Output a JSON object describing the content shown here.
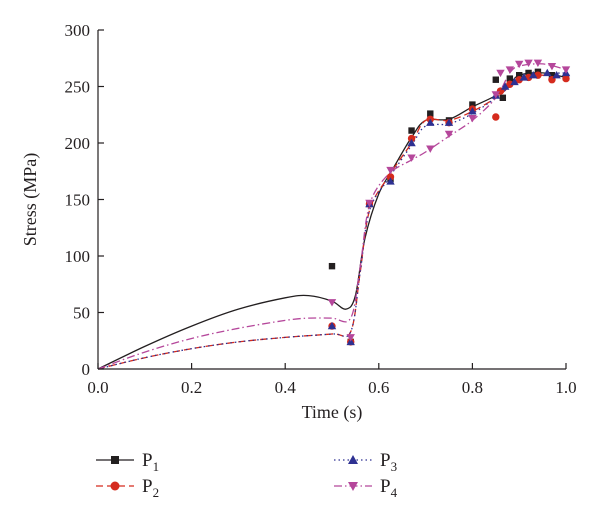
{
  "chart_data": {
    "type": "scatter",
    "title": "",
    "xlabel": "Time (s)",
    "ylabel": "Stress (MPa)",
    "xlim": [
      0.0,
      1.0
    ],
    "ylim": [
      0,
      300
    ],
    "x_ticks": [
      "0.0",
      "0.2",
      "0.4",
      "0.6",
      "0.8",
      "1.0"
    ],
    "y_ticks": [
      "0",
      "50",
      "100",
      "150",
      "200",
      "250",
      "300"
    ],
    "x_tick_values": [
      0.0,
      0.2,
      0.4,
      0.6,
      0.8,
      1.0
    ],
    "y_tick_values": [
      0,
      50,
      100,
      150,
      200,
      250,
      300
    ],
    "grid": false,
    "legend_position": "bottom",
    "series": [
      {
        "name": "P",
        "subscript": "1",
        "marker": "square",
        "line_style": "solid",
        "color": "#231f20",
        "points": [
          [
            0.5,
            91
          ],
          [
            0.54,
            24
          ],
          [
            0.58,
            146
          ],
          [
            0.625,
            168
          ],
          [
            0.67,
            211
          ],
          [
            0.71,
            226
          ],
          [
            0.75,
            220
          ],
          [
            0.8,
            234
          ],
          [
            0.85,
            256
          ],
          [
            0.865,
            240
          ],
          [
            0.88,
            257
          ],
          [
            0.9,
            260
          ],
          [
            0.92,
            262
          ],
          [
            0.94,
            263
          ],
          [
            0.97,
            260
          ],
          [
            1.0,
            258
          ]
        ],
        "curve": [
          [
            0.0,
            0
          ],
          [
            0.1,
            20
          ],
          [
            0.2,
            38
          ],
          [
            0.3,
            53
          ],
          [
            0.4,
            63
          ],
          [
            0.45,
            65
          ],
          [
            0.5,
            60
          ],
          [
            0.53,
            53
          ],
          [
            0.55,
            65
          ],
          [
            0.57,
            115
          ],
          [
            0.6,
            155
          ],
          [
            0.63,
            177
          ],
          [
            0.67,
            205
          ],
          [
            0.7,
            220
          ],
          [
            0.75,
            221
          ],
          [
            0.8,
            232
          ],
          [
            0.85,
            242
          ],
          [
            0.88,
            252
          ],
          [
            0.9,
            260
          ],
          [
            0.95,
            262
          ],
          [
            1.0,
            258
          ]
        ]
      },
      {
        "name": "P",
        "subscript": "2",
        "marker": "circle",
        "line_style": "dashed",
        "color": "#d52b1e",
        "points": [
          [
            0.5,
            38
          ],
          [
            0.54,
            24
          ],
          [
            0.58,
            146
          ],
          [
            0.625,
            170
          ],
          [
            0.67,
            204
          ],
          [
            0.71,
            221
          ],
          [
            0.75,
            218
          ],
          [
            0.8,
            230
          ],
          [
            0.85,
            223
          ],
          [
            0.86,
            246
          ],
          [
            0.88,
            252
          ],
          [
            0.9,
            256
          ],
          [
            0.92,
            258
          ],
          [
            0.94,
            260
          ],
          [
            0.97,
            256
          ],
          [
            1.0,
            257
          ]
        ],
        "curve": [
          [
            0.0,
            0
          ],
          [
            0.1,
            10
          ],
          [
            0.2,
            18
          ],
          [
            0.3,
            24
          ],
          [
            0.4,
            28
          ],
          [
            0.5,
            31
          ],
          [
            0.54,
            33
          ],
          [
            0.56,
            85
          ],
          [
            0.58,
            140
          ],
          [
            0.62,
            170
          ],
          [
            0.67,
            200
          ],
          [
            0.7,
            220
          ],
          [
            0.75,
            220
          ],
          [
            0.8,
            228
          ],
          [
            0.85,
            240
          ],
          [
            0.88,
            250
          ],
          [
            0.9,
            255
          ],
          [
            0.95,
            260
          ],
          [
            1.0,
            257
          ]
        ]
      },
      {
        "name": "P",
        "subscript": "3",
        "marker": "triangle-up",
        "line_style": "dotted",
        "color": "#2e3192",
        "points": [
          [
            0.5,
            38
          ],
          [
            0.54,
            24
          ],
          [
            0.58,
            146
          ],
          [
            0.625,
            166
          ],
          [
            0.67,
            200
          ],
          [
            0.71,
            218
          ],
          [
            0.75,
            218
          ],
          [
            0.8,
            228
          ],
          [
            0.85,
            242
          ],
          [
            0.87,
            250
          ],
          [
            0.89,
            254
          ],
          [
            0.91,
            258
          ],
          [
            0.93,
            260
          ],
          [
            0.96,
            262
          ],
          [
            0.98,
            260
          ],
          [
            1.0,
            262
          ]
        ],
        "curve": [
          [
            0.0,
            0
          ],
          [
            0.1,
            10
          ],
          [
            0.2,
            18
          ],
          [
            0.3,
            24
          ],
          [
            0.4,
            28
          ],
          [
            0.5,
            31
          ],
          [
            0.54,
            33
          ],
          [
            0.56,
            85
          ],
          [
            0.58,
            140
          ],
          [
            0.62,
            168
          ],
          [
            0.67,
            198
          ],
          [
            0.7,
            215
          ],
          [
            0.75,
            217
          ],
          [
            0.8,
            226
          ],
          [
            0.85,
            240
          ],
          [
            0.88,
            250
          ],
          [
            0.9,
            256
          ],
          [
            0.95,
            261
          ],
          [
            1.0,
            262
          ]
        ]
      },
      {
        "name": "P",
        "subscript": "4",
        "marker": "triangle-down",
        "line_style": "dash-dot",
        "color": "#b5479b",
        "points": [
          [
            0.5,
            59
          ],
          [
            0.54,
            28
          ],
          [
            0.58,
            147
          ],
          [
            0.625,
            176
          ],
          [
            0.67,
            187
          ],
          [
            0.71,
            195
          ],
          [
            0.75,
            208
          ],
          [
            0.8,
            222
          ],
          [
            0.85,
            243
          ],
          [
            0.86,
            262
          ],
          [
            0.88,
            265
          ],
          [
            0.9,
            270
          ],
          [
            0.92,
            271
          ],
          [
            0.94,
            271
          ],
          [
            0.97,
            268
          ],
          [
            1.0,
            265
          ]
        ],
        "curve": [
          [
            0.0,
            0
          ],
          [
            0.1,
            15
          ],
          [
            0.2,
            27
          ],
          [
            0.3,
            36
          ],
          [
            0.4,
            43
          ],
          [
            0.45,
            45
          ],
          [
            0.5,
            45
          ],
          [
            0.54,
            45
          ],
          [
            0.56,
            90
          ],
          [
            0.58,
            145
          ],
          [
            0.62,
            172
          ],
          [
            0.67,
            185
          ],
          [
            0.7,
            192
          ],
          [
            0.75,
            206
          ],
          [
            0.8,
            220
          ],
          [
            0.85,
            240
          ],
          [
            0.88,
            262
          ],
          [
            0.9,
            268
          ],
          [
            0.95,
            270
          ],
          [
            1.0,
            265
          ]
        ]
      }
    ]
  }
}
